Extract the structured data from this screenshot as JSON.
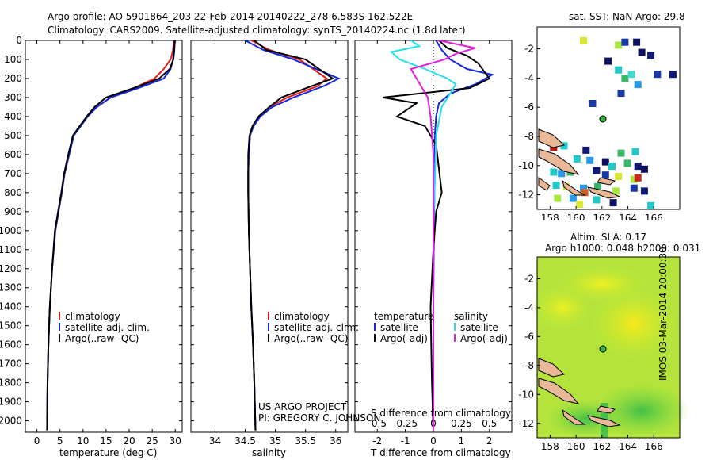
{
  "header": {
    "line1": "Argo profile: AO 5901864_203 22-Feb-2014 20140222_278 6.583S 162.522E",
    "line2": "Climatology: CARS2009. Satellite-adjusted climatology: synTS_20140224.nc (1.8d later)"
  },
  "credit": {
    "line1": "US ARGO PROJECT",
    "line2": "PI: GREGORY C. JOHNSON"
  },
  "side_label": "IMOS 03-Mar-2014 20:00:30",
  "colors": {
    "climatology": "#e0201a",
    "satellite": "#1428d8",
    "argo": "#000000",
    "sal_sat": "#20e0f0",
    "sal_argo": "#e020e0"
  },
  "chart_data": [
    {
      "type": "line",
      "id": "temperature",
      "xlabel": "temperature (deg C)",
      "ylabel": "",
      "xlim": [
        -2.5,
        31.5
      ],
      "ylim": [
        2060,
        0
      ],
      "xticks": [
        0,
        5,
        10,
        15,
        20,
        25,
        30
      ],
      "yticks": [
        0,
        100,
        200,
        300,
        400,
        500,
        600,
        700,
        800,
        900,
        1000,
        1100,
        1200,
        1300,
        1400,
        1500,
        1600,
        1700,
        1800,
        1900,
        2000
      ],
      "legend": [
        "climatology",
        "satellite-adj. clim.",
        "Argo(..raw -QC)"
      ],
      "series": [
        {
          "name": "climatology",
          "color": "climatology",
          "x": [
            29.7,
            29.5,
            29,
            27.5,
            25.5,
            21,
            16,
            13,
            11,
            9.5,
            8,
            7,
            6,
            5.4,
            4.7,
            4,
            3.3,
            2.8,
            2.5,
            2.3,
            2.2
          ],
          "y": [
            0,
            50,
            100,
            150,
            200,
            250,
            300,
            350,
            400,
            450,
            500,
            600,
            700,
            800,
            900,
            1000,
            1200,
            1400,
            1600,
            1800,
            2000
          ]
        },
        {
          "name": "satellite-adj. clim.",
          "color": "satellite",
          "x": [
            29.8,
            29.7,
            29.5,
            29,
            27.5,
            22,
            16,
            13,
            11,
            9.5,
            8,
            7,
            6,
            5.4,
            4.7,
            4,
            3.3,
            2.8,
            2.5,
            2.3,
            2.2
          ],
          "y": [
            0,
            50,
            100,
            150,
            200,
            250,
            300,
            350,
            400,
            450,
            500,
            600,
            700,
            800,
            900,
            1000,
            1200,
            1400,
            1600,
            1800,
            2000
          ]
        },
        {
          "name": "Argo(..raw -QC)",
          "color": "argo",
          "x": [
            29.9,
            29.8,
            29.6,
            28.8,
            26.5,
            21,
            15,
            12.5,
            10.8,
            9.3,
            7.8,
            6.8,
            5.9,
            5.3,
            4.6,
            3.9,
            3.3,
            2.8,
            2.5,
            2.3,
            2.2
          ],
          "y": [
            0,
            50,
            100,
            150,
            200,
            250,
            300,
            350,
            400,
            450,
            500,
            600,
            700,
            800,
            900,
            1000,
            1200,
            1400,
            1600,
            1800,
            2050
          ]
        }
      ]
    },
    {
      "type": "line",
      "id": "salinity",
      "xlabel": "salinity",
      "xlim": [
        33.6,
        36.2
      ],
      "ylim": [
        2060,
        0
      ],
      "xticks": [
        34,
        34.5,
        35,
        35.5,
        36
      ],
      "legend": [
        "climatology",
        "satellite-adj. clim.",
        "Argo(..raw -QC)"
      ],
      "series": [
        {
          "name": "climatology",
          "color": "climatology",
          "x": [
            34.6,
            34.9,
            35.4,
            35.85,
            35.7,
            35.2,
            34.9,
            34.72,
            34.63,
            34.58,
            34.56,
            34.55,
            34.55,
            34.56,
            34.58,
            34.6,
            34.63,
            34.65,
            34.67
          ],
          "y": [
            0,
            50,
            100,
            200,
            240,
            300,
            350,
            400,
            450,
            500,
            600,
            700,
            800,
            1000,
            1200,
            1400,
            1600,
            1800,
            2050
          ]
        },
        {
          "name": "satellite-adj. clim.",
          "color": "satellite",
          "x": [
            34.5,
            34.8,
            35.3,
            36.05,
            35.8,
            35.3,
            34.95,
            34.75,
            34.64,
            34.58,
            34.56,
            34.55,
            34.55,
            34.56,
            34.58,
            34.6,
            34.63,
            34.65,
            34.67
          ],
          "y": [
            0,
            50,
            100,
            200,
            240,
            300,
            350,
            400,
            450,
            500,
            600,
            700,
            800,
            1000,
            1200,
            1400,
            1600,
            1800,
            2050
          ]
        },
        {
          "name": "Argo(..raw -QC)",
          "color": "argo",
          "x": [
            34.65,
            34.85,
            35.5,
            35.95,
            35.6,
            35.1,
            34.9,
            34.72,
            34.62,
            34.57,
            34.55,
            34.55,
            34.55,
            34.56,
            34.58,
            34.6,
            34.63,
            34.65,
            34.67
          ],
          "y": [
            0,
            50,
            100,
            200,
            240,
            300,
            350,
            400,
            450,
            500,
            600,
            700,
            800,
            1000,
            1200,
            1400,
            1600,
            1800,
            2050
          ]
        }
      ]
    },
    {
      "type": "line",
      "id": "difference",
      "xlabel": "T difference from climatology",
      "xlabel_top": "S difference from climatology",
      "xlim": [
        -2.8,
        2.8
      ],
      "ylim": [
        2060,
        0
      ],
      "xticks": [
        -2,
        -1,
        0,
        1,
        2
      ],
      "s_ticks": [
        "-0.5",
        "-0.25",
        "0",
        "0.25",
        "0.5"
      ],
      "legend_temperature": {
        "title": "temperature",
        "items": [
          "satellite",
          "Argo(-adj)"
        ]
      },
      "legend_salinity": {
        "title": "salinity",
        "items": [
          "satellite",
          "Argo(-adj)"
        ]
      },
      "series": [
        {
          "name": "T satellite",
          "color": "satellite",
          "x": [
            0.1,
            0.3,
            0.6,
            1.2,
            2.1,
            1.5,
            0.6,
            0.2,
            0.1,
            0.05,
            0.05,
            0.02,
            0,
            0,
            0
          ],
          "y": [
            0,
            50,
            100,
            150,
            180,
            230,
            280,
            330,
            400,
            500,
            700,
            1000,
            1400,
            1800,
            2050
          ]
        },
        {
          "name": "T Argo(-adj)",
          "color": "argo",
          "x": [
            0.2,
            0.5,
            1.2,
            1.6,
            2,
            1.3,
            -1.8,
            -0.6,
            -1.3,
            -0.3,
            0.1,
            0.3,
            0.1,
            0,
            -0.1,
            -0.05,
            0
          ],
          "y": [
            0,
            40,
            80,
            120,
            200,
            250,
            300,
            330,
            400,
            450,
            550,
            800,
            900,
            1100,
            1400,
            1800,
            2050
          ]
        },
        {
          "name": "S satellite",
          "color": "sal_sat",
          "x": [
            -0.8,
            -0.5,
            -1.5,
            -1.2,
            -0.3,
            0.5,
            0.8,
            0.6,
            0.3,
            0.1,
            0,
            0
          ],
          "y": [
            0,
            30,
            60,
            100,
            150,
            200,
            230,
            280,
            350,
            500,
            1000,
            2050
          ]
        },
        {
          "name": "S Argo(-adj)",
          "color": "sal_argo",
          "x": [
            0.2,
            1.5,
            0.8,
            0.4,
            -0.8,
            -0.6,
            -0.2,
            -0.1,
            0,
            0,
            0
          ],
          "y": [
            0,
            40,
            70,
            100,
            150,
            200,
            300,
            400,
            600,
            1000,
            2050
          ]
        }
      ]
    },
    {
      "type": "heatmap",
      "id": "sst_map",
      "title": "sat. SST: NaN Argo: 29.8",
      "xticks": [
        158,
        160,
        162,
        164,
        166
      ],
      "yticks": [
        -2,
        -4,
        -6,
        -8,
        -10,
        -12
      ],
      "xlim": [
        157,
        168
      ],
      "ylim": [
        -13,
        -0.5
      ],
      "argo_position": [
        162.52,
        -6.58
      ]
    },
    {
      "type": "heatmap",
      "id": "sla_map",
      "title_line1": "Altim. SLA: 0.17",
      "title_line2": "Argo h1000: 0.048 h2000: 0.031",
      "xticks": [
        158,
        160,
        162,
        164,
        166
      ],
      "yticks": [
        -2,
        -4,
        -6,
        -8,
        -10,
        -12
      ],
      "xlim": [
        157,
        168
      ],
      "ylim": [
        -13,
        -0.5
      ],
      "argo_position": [
        162.52,
        -6.58
      ]
    }
  ]
}
